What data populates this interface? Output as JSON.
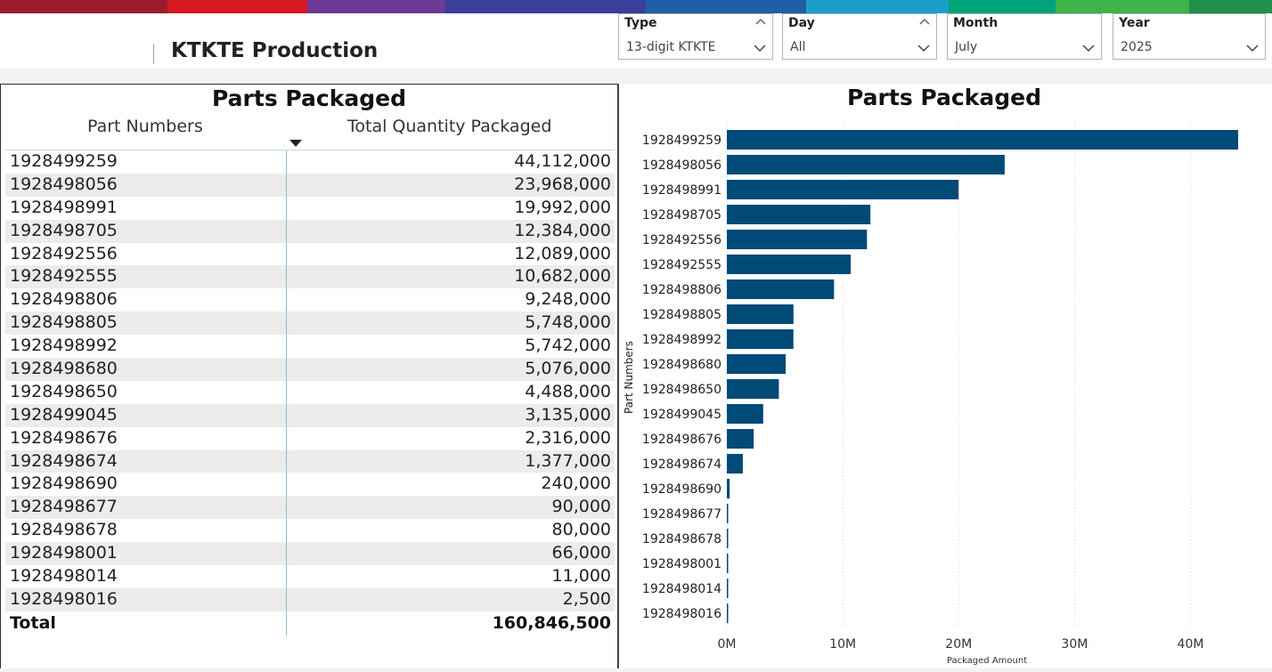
{
  "header": {
    "title": "KTKTE Production",
    "brand_colors": [
      "#9b1c31",
      "#d71920",
      "#6c3a96",
      "#3a3f9a",
      "#1f5fa8",
      "#1aa0c8",
      "#00a37a",
      "#3fb24a",
      "#1f8f4a"
    ]
  },
  "slicers": [
    {
      "label": "Type",
      "value": "13-digit KTKTE"
    },
    {
      "label": "Day",
      "value": "All"
    },
    {
      "label": "Month",
      "value": "July"
    },
    {
      "label": "Year",
      "value": "2025"
    }
  ],
  "table": {
    "title": "Parts Packaged",
    "col_part": "Part Numbers",
    "col_qty": "Total Quantity Packaged",
    "rows": [
      {
        "part": "1928499259",
        "qty": "44,112,000"
      },
      {
        "part": "1928498056",
        "qty": "23,968,000"
      },
      {
        "part": "1928498991",
        "qty": "19,992,000"
      },
      {
        "part": "1928498705",
        "qty": "12,384,000"
      },
      {
        "part": "1928492556",
        "qty": "12,089,000"
      },
      {
        "part": "1928492555",
        "qty": "10,682,000"
      },
      {
        "part": "1928498806",
        "qty": "9,248,000"
      },
      {
        "part": "1928498805",
        "qty": "5,748,000"
      },
      {
        "part": "1928498992",
        "qty": "5,742,000"
      },
      {
        "part": "1928498680",
        "qty": "5,076,000"
      },
      {
        "part": "1928498650",
        "qty": "4,488,000"
      },
      {
        "part": "1928499045",
        "qty": "3,135,000"
      },
      {
        "part": "1928498676",
        "qty": "2,316,000"
      },
      {
        "part": "1928498674",
        "qty": "1,377,000"
      },
      {
        "part": "1928498690",
        "qty": "240,000"
      },
      {
        "part": "1928498677",
        "qty": "90,000"
      },
      {
        "part": "1928498678",
        "qty": "80,000"
      },
      {
        "part": "1928498001",
        "qty": "66,000"
      },
      {
        "part": "1928498014",
        "qty": "11,000"
      },
      {
        "part": "1928498016",
        "qty": "2,500"
      }
    ],
    "total_label": "Total",
    "total_value": "160,846,500"
  },
  "chart_data": {
    "type": "bar",
    "orientation": "horizontal",
    "title": "Parts Packaged",
    "xlabel": "Packaged Amount",
    "ylabel": "Part Numbers",
    "xlim": [
      0,
      44112000
    ],
    "xticks": [
      0,
      10000000,
      20000000,
      30000000,
      40000000
    ],
    "xtick_labels": [
      "0M",
      "10M",
      "20M",
      "30M",
      "40M"
    ],
    "grid": true,
    "bar_color": "#004a78",
    "categories": [
      "1928499259",
      "1928498056",
      "1928498991",
      "1928498705",
      "1928492556",
      "1928492555",
      "1928498806",
      "1928498805",
      "1928498992",
      "1928498680",
      "1928498650",
      "1928499045",
      "1928498676",
      "1928498674",
      "1928498690",
      "1928498677",
      "1928498678",
      "1928498001",
      "1928498014",
      "1928498016"
    ],
    "values": [
      44112000,
      23968000,
      19992000,
      12384000,
      12089000,
      10682000,
      9248000,
      5748000,
      5742000,
      5076000,
      4488000,
      3135000,
      2316000,
      1377000,
      240000,
      90000,
      80000,
      66000,
      11000,
      2500
    ]
  }
}
